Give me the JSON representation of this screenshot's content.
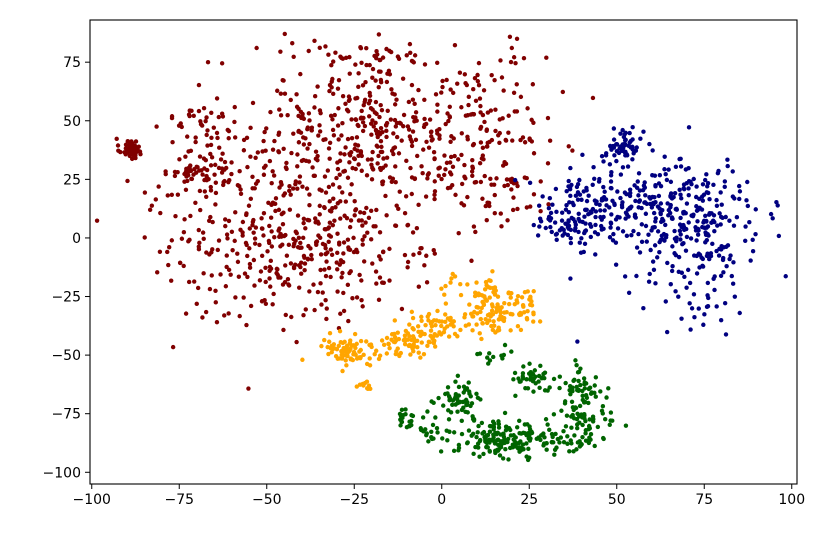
{
  "chart_data": {
    "type": "scatter",
    "title": "",
    "xlabel": "",
    "ylabel": "",
    "xlim": [
      -100.5,
      101.5
    ],
    "ylim": [
      -105,
      93
    ],
    "xticks": [
      -100,
      -75,
      -50,
      -25,
      0,
      25,
      50,
      75,
      100
    ],
    "yticks": [
      -100,
      -75,
      -50,
      -25,
      0,
      25,
      50,
      75
    ],
    "xtick_labels": [
      "−100",
      "−75",
      "−50",
      "−25",
      "0",
      "25",
      "50",
      "75",
      "100"
    ],
    "ytick_labels": [
      "−100",
      "−75",
      "−50",
      "−25",
      "0",
      "25",
      "50",
      "75"
    ],
    "grid": false,
    "legend": "none",
    "series": [
      {
        "color": "#800000",
        "clusters": [
          {
            "cx": -89,
            "cy": 38,
            "sx": 1.6,
            "sy": 2.2,
            "n": 45
          },
          {
            "cx": -18,
            "cy": 45,
            "sx": 19,
            "sy": 19,
            "n": 430
          },
          {
            "cx": -52,
            "cy": 8,
            "sx": 16,
            "sy": 22,
            "n": 330
          },
          {
            "cx": -28,
            "cy": -8,
            "sx": 14,
            "sy": 13,
            "n": 140
          },
          {
            "cx": 14,
            "cy": 48,
            "sx": 8,
            "sy": 16,
            "n": 90
          },
          {
            "cx": 18,
            "cy": 18,
            "sx": 6,
            "sy": 7,
            "n": 35
          },
          {
            "cx": -70,
            "cy": 28,
            "sx": 4,
            "sy": 3,
            "n": 40
          },
          {
            "cx": -70,
            "cy": 50,
            "sx": 4,
            "sy": 4,
            "n": 20
          },
          {
            "cx": -25,
            "cy": 78,
            "sx": 8,
            "sy": 3,
            "n": 30
          }
        ]
      },
      {
        "color": "#000080",
        "clusters": [
          {
            "cx": 52,
            "cy": 40,
            "sx": 2.5,
            "sy": 3,
            "n": 55
          },
          {
            "cx": 62,
            "cy": 14,
            "sx": 13,
            "sy": 10,
            "n": 230
          },
          {
            "cx": 74,
            "cy": -5,
            "sx": 9,
            "sy": 14,
            "n": 170
          },
          {
            "cx": 40,
            "cy": 12,
            "sx": 7,
            "sy": 8,
            "n": 90
          },
          {
            "cx": 33,
            "cy": 5,
            "sx": 4,
            "sy": 3,
            "n": 30
          }
        ]
      },
      {
        "color": "#ffa500",
        "clusters": [
          {
            "cx": -27,
            "cy": -48,
            "sx": 4,
            "sy": 4,
            "n": 80
          },
          {
            "cx": -10,
            "cy": -46,
            "sx": 4,
            "sy": 3.5,
            "n": 55
          },
          {
            "cx": -2,
            "cy": -38,
            "sx": 5,
            "sy": 4,
            "n": 55
          },
          {
            "cx": 12,
            "cy": -34,
            "sx": 4,
            "sy": 4.5,
            "n": 60
          },
          {
            "cx": 22,
            "cy": -30,
            "sx": 4,
            "sy": 4,
            "n": 45
          },
          {
            "cx": 12,
            "cy": -22,
            "sx": 2.5,
            "sy": 3,
            "n": 25
          },
          {
            "cx": -22,
            "cy": -63,
            "sx": 2,
            "sy": 2,
            "n": 10
          },
          {
            "cx": 5,
            "cy": -20,
            "sx": 3,
            "sy": 3,
            "n": 10
          }
        ]
      },
      {
        "color": "#006400",
        "clusters": [
          {
            "cx": 5,
            "cy": -70,
            "sx": 3,
            "sy": 4,
            "n": 60
          },
          {
            "cx": -10,
            "cy": -77,
            "sx": 2,
            "sy": 2,
            "n": 20
          },
          {
            "cx": 15,
            "cy": -86,
            "sx": 6,
            "sy": 4,
            "n": 110
          },
          {
            "cx": 30,
            "cy": -87,
            "sx": 6,
            "sy": 3.5,
            "n": 70
          },
          {
            "cx": 40,
            "cy": -78,
            "sx": 4,
            "sy": 5,
            "n": 70
          },
          {
            "cx": 25,
            "cy": -60,
            "sx": 3,
            "sy": 3,
            "n": 40
          },
          {
            "cx": 40,
            "cy": -62,
            "sx": 3,
            "sy": 4,
            "n": 40
          },
          {
            "cx": -3,
            "cy": -82,
            "sx": 2,
            "sy": 2,
            "n": 15
          },
          {
            "cx": 15,
            "cy": -50,
            "sx": 3,
            "sy": 3,
            "n": 12
          }
        ]
      }
    ]
  }
}
